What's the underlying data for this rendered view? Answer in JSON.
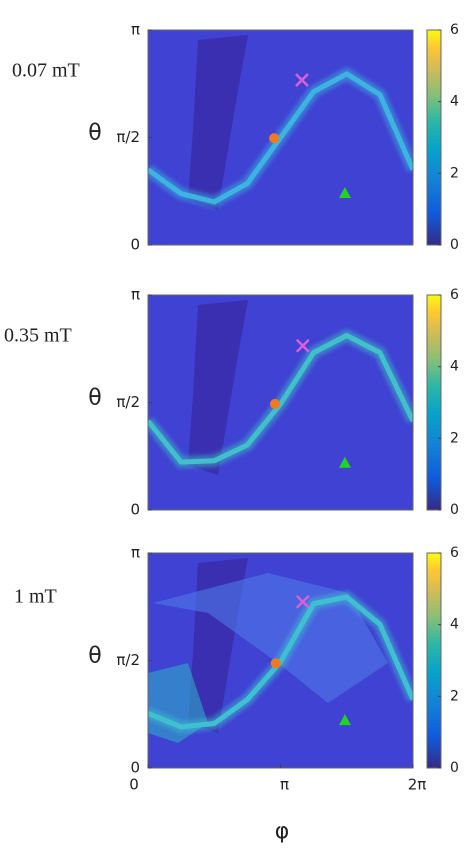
{
  "chart_data": [
    {
      "type": "heatmap",
      "label": "0.07 mT",
      "ylabel": "θ",
      "xlim": [
        0,
        6.2832
      ],
      "ylim": [
        0,
        3.1416
      ],
      "yticks": [
        0,
        {
          "value": 1.5708,
          "label": "π/2"
        },
        {
          "value": 3.1416,
          "label": "π"
        }
      ],
      "clim": [
        0,
        6
      ],
      "cticks": [
        0,
        2,
        4,
        6
      ],
      "curve": {
        "color": "#3cb4e0",
        "x": [
          0,
          0.785,
          1.571,
          2.356,
          3.142,
          3.927,
          4.712,
          5.498,
          6.283
        ],
        "values": [
          1.1,
          0.75,
          0.63,
          0.9,
          1.57,
          2.24,
          2.5,
          2.2,
          1.1
        ]
      },
      "markers": [
        {
          "shape": "circle",
          "color": "#f07a20",
          "x": [
            2.99
          ],
          "values": [
            1.56
          ]
        },
        {
          "shape": "cross",
          "color": "#d860d8",
          "x": [
            3.65
          ],
          "values": [
            2.41
          ]
        },
        {
          "shape": "triangle",
          "color": "#22d422",
          "x": [
            4.67
          ],
          "values": [
            0.76
          ]
        }
      ]
    },
    {
      "type": "heatmap",
      "label": "0.35 mT",
      "ylabel": "θ",
      "xlim": [
        0,
        6.2832
      ],
      "ylim": [
        0,
        3.1416
      ],
      "yticks": [
        0,
        {
          "value": 1.5708,
          "label": "π/2"
        },
        {
          "value": 3.1416,
          "label": "π"
        }
      ],
      "clim": [
        0,
        6
      ],
      "cticks": [
        0,
        2,
        4,
        6
      ],
      "curve": {
        "color": "#40c0c8",
        "x": [
          0,
          0.785,
          1.571,
          2.356,
          3.142,
          3.927,
          4.712,
          5.498,
          6.283
        ],
        "values": [
          1.3,
          0.7,
          0.72,
          0.95,
          1.55,
          2.3,
          2.55,
          2.3,
          1.3
        ]
      },
      "markers": [
        {
          "shape": "circle",
          "color": "#f07a20",
          "x": [
            3.01
          ],
          "values": [
            1.55
          ]
        },
        {
          "shape": "cross",
          "color": "#d860d8",
          "x": [
            3.67
          ],
          "values": [
            2.4
          ]
        },
        {
          "shape": "triangle",
          "color": "#22d422",
          "x": [
            4.67
          ],
          "values": [
            0.69
          ]
        }
      ]
    },
    {
      "type": "heatmap",
      "label": "1 mT",
      "ylabel": "θ",
      "xlabel": "φ",
      "xlim": [
        0,
        6.2832
      ],
      "ylim": [
        0,
        3.1416
      ],
      "xticks": [
        0,
        {
          "value": 3.1416,
          "label": "π"
        },
        {
          "value": 6.2832,
          "label": "2π"
        }
      ],
      "yticks": [
        0,
        {
          "value": 1.5708,
          "label": "π/2"
        },
        {
          "value": 3.1416,
          "label": "π"
        }
      ],
      "clim": [
        0,
        6
      ],
      "cticks": [
        0,
        2,
        4,
        6
      ],
      "curve": {
        "color": "#3fc0d0",
        "x": [
          0,
          0.785,
          1.571,
          2.356,
          3.142,
          3.927,
          4.712,
          5.498,
          6.283
        ],
        "values": [
          0.8,
          0.6,
          0.65,
          1.0,
          1.55,
          2.4,
          2.5,
          2.1,
          1.0
        ]
      },
      "markers": [
        {
          "shape": "circle",
          "color": "#f07a20",
          "x": [
            3.03
          ],
          "values": [
            1.53
          ]
        },
        {
          "shape": "cross",
          "color": "#d860d8",
          "x": [
            3.67
          ],
          "values": [
            2.43
          ]
        },
        {
          "shape": "triangle",
          "color": "#22d422",
          "x": [
            4.67
          ],
          "values": [
            0.7
          ]
        }
      ]
    }
  ]
}
